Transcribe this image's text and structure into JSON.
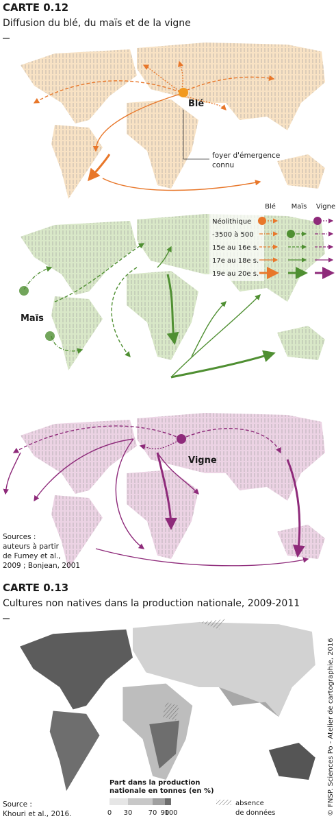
{
  "carte1": {
    "label": "CARTE 0.12",
    "title": "Diffusion du blé, du maïs et de la vigne",
    "map_labels": {
      "ble": "Blé",
      "mais": "Maïs",
      "vigne": "Vigne"
    },
    "annotation": [
      "foyer d'émergence",
      "connu"
    ],
    "legend": {
      "columns": [
        "Blé",
        "Maïs",
        "Vigne"
      ],
      "rows": [
        "Néolithique",
        "-3500 à 500",
        "15e au 16e s.",
        "17e au 18e s.",
        "19e au 20e s."
      ]
    },
    "sources": [
      "Sources :",
      "auteurs à partir",
      "de Fumey et al.,",
      "2009 ; Bonjean, 2001"
    ]
  },
  "carte2": {
    "label": "CARTE 0.13",
    "title": "Cultures non natives dans la production nationale, 2009-2011",
    "legend": {
      "title": [
        "Part dans la production",
        "nationale en tonnes (en %)"
      ],
      "ticks": [
        0,
        30,
        70,
        90,
        100
      ],
      "no_data": [
        "absence",
        "de données"
      ]
    },
    "source": [
      "Source :",
      "Khouri et al., 2016."
    ]
  },
  "credit": "© FNSP. Sciences Po - Atelier de cartographie, 2016"
}
